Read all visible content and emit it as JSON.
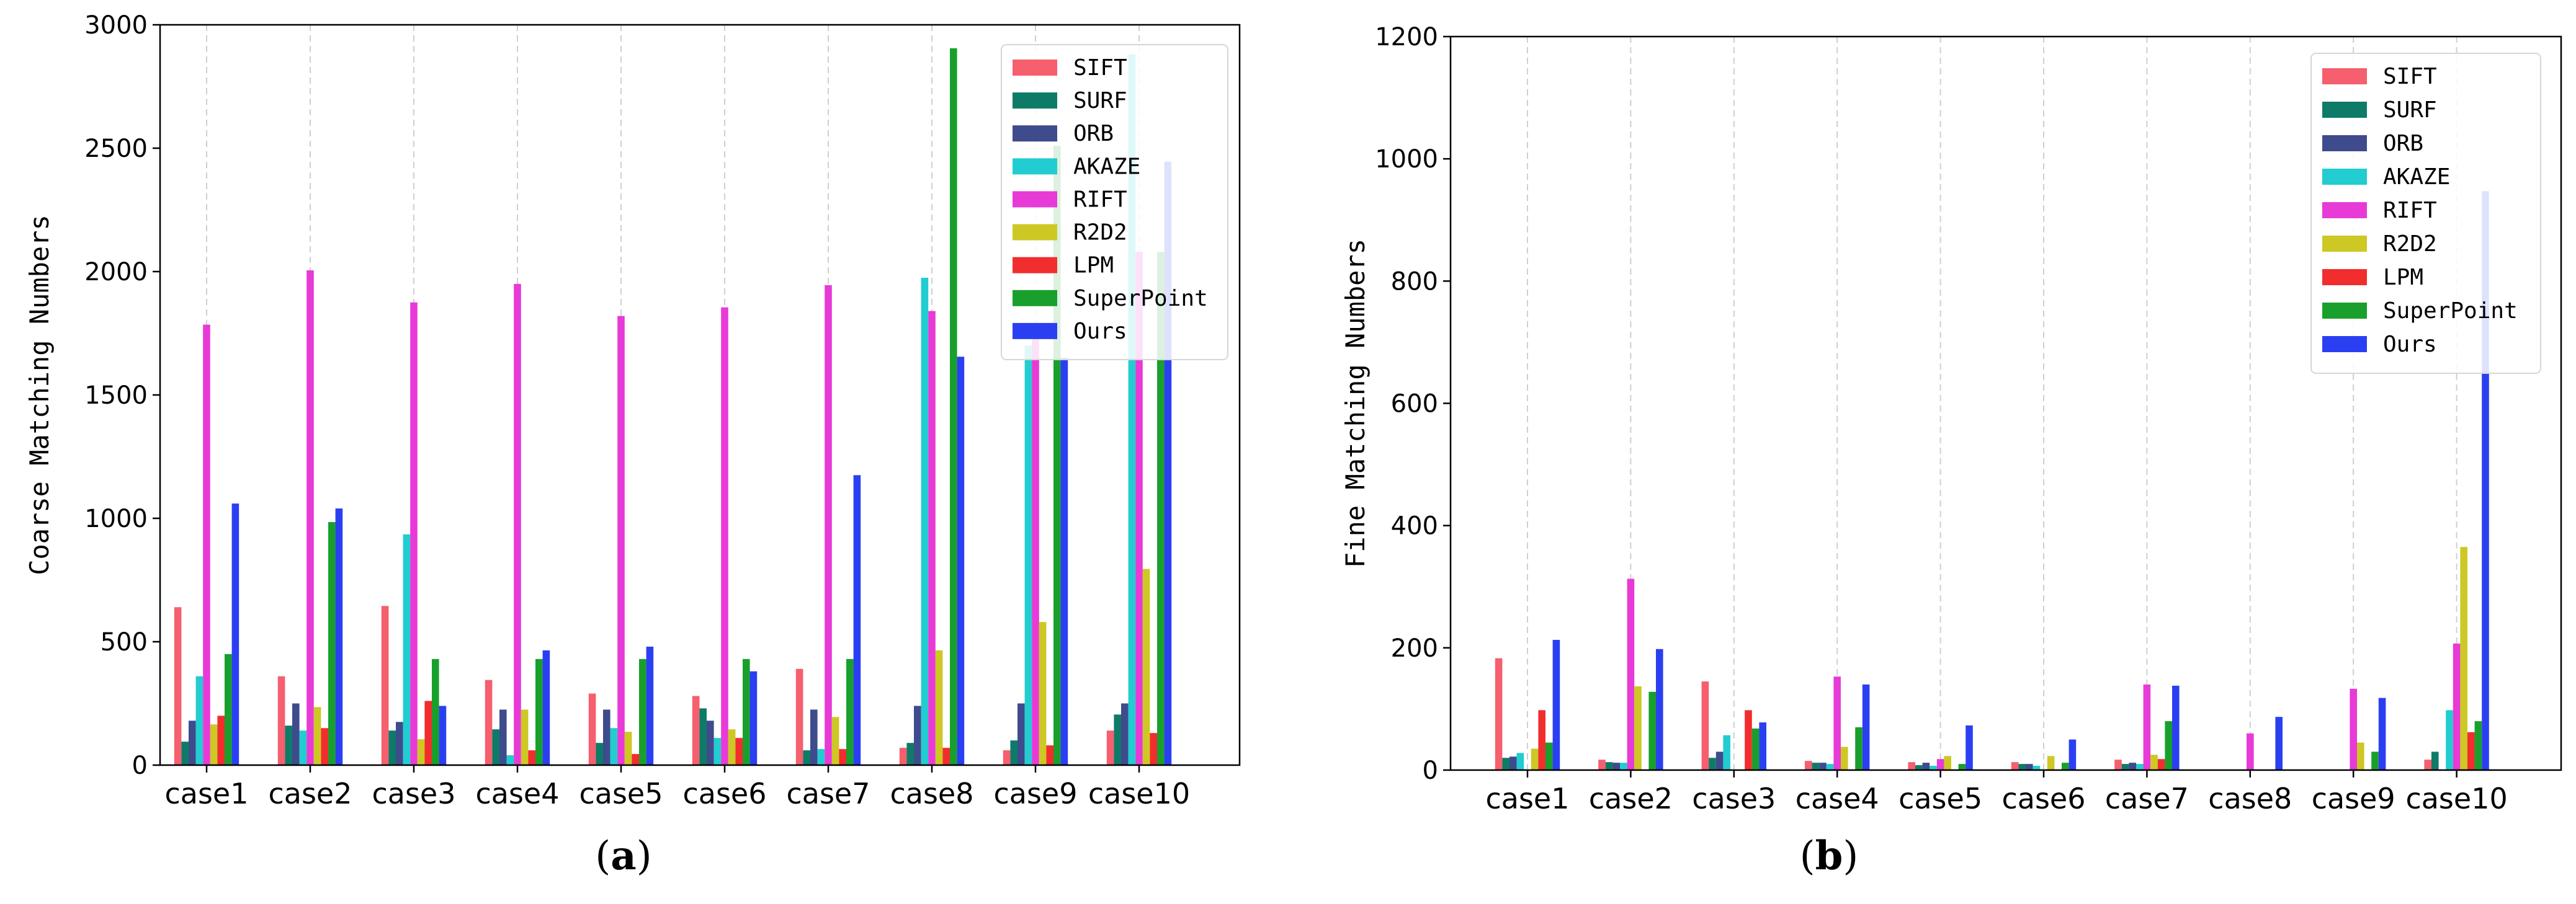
{
  "chart_data": [
    {
      "type": "bar",
      "panel_label": "a",
      "ylabel": "Coarse Matching Numbers",
      "ylim": [
        0,
        3000
      ],
      "yticks": [
        0,
        500,
        1000,
        1500,
        2000,
        2500,
        3000
      ],
      "grid_x": true,
      "legend_position": "top-right",
      "categories": [
        "case1",
        "case2",
        "case3",
        "case4",
        "case5",
        "case6",
        "case7",
        "case8",
        "case9",
        "case10"
      ],
      "series": [
        {
          "name": "SIFT",
          "color": "#f55f6e",
          "values": [
            640,
            360,
            645,
            345,
            290,
            280,
            390,
            70,
            60,
            140
          ]
        },
        {
          "name": "SURF",
          "color": "#0e7b68",
          "values": [
            95,
            160,
            140,
            145,
            90,
            230,
            60,
            90,
            100,
            205
          ]
        },
        {
          "name": "ORB",
          "color": "#3e4b8c",
          "values": [
            180,
            250,
            175,
            225,
            225,
            180,
            225,
            240,
            250,
            250
          ]
        },
        {
          "name": "AKAZE",
          "color": "#21cdd0",
          "values": [
            360,
            140,
            935,
            40,
            150,
            110,
            65,
            1975,
            1700,
            2880
          ]
        },
        {
          "name": "RIFT",
          "color": "#e83ad6",
          "values": [
            1785,
            2005,
            1875,
            1950,
            1820,
            1855,
            1945,
            1840,
            1750,
            2080
          ]
        },
        {
          "name": "R2D2",
          "color": "#cdc824",
          "values": [
            165,
            235,
            105,
            225,
            135,
            145,
            195,
            465,
            580,
            795
          ]
        },
        {
          "name": "LPM",
          "color": "#f22d2d",
          "values": [
            200,
            150,
            260,
            60,
            45,
            110,
            65,
            70,
            80,
            130
          ]
        },
        {
          "name": "SuperPoint",
          "color": "#19a02c",
          "values": [
            450,
            985,
            430,
            430,
            430,
            430,
            430,
            2905,
            2510,
            2080
          ]
        },
        {
          "name": "Ours",
          "color": "#2b3ff2",
          "values": [
            1060,
            1040,
            240,
            465,
            480,
            380,
            1175,
            1655,
            1650,
            2445
          ]
        }
      ]
    },
    {
      "type": "bar",
      "panel_label": "b",
      "ylabel": "Fine Matching Numbers",
      "ylim": [
        0,
        1200
      ],
      "yticks": [
        0,
        200,
        400,
        600,
        800,
        1000,
        1200
      ],
      "grid_x": true,
      "legend_position": "top-right",
      "categories": [
        "case1",
        "case2",
        "case3",
        "case4",
        "case5",
        "case6",
        "case7",
        "case8",
        "case9",
        "case10"
      ],
      "series": [
        {
          "name": "SIFT",
          "color": "#f55f6e",
          "values": [
            183,
            17,
            145,
            15,
            13,
            13,
            17,
            0,
            0,
            17
          ]
        },
        {
          "name": "SURF",
          "color": "#0e7b68",
          "values": [
            20,
            13,
            20,
            12,
            8,
            10,
            10,
            0,
            0,
            30
          ]
        },
        {
          "name": "ORB",
          "color": "#3e4b8c",
          "values": [
            22,
            12,
            30,
            12,
            12,
            10,
            12,
            0,
            0,
            0
          ]
        },
        {
          "name": "AKAZE",
          "color": "#21cdd0",
          "values": [
            28,
            12,
            57,
            10,
            7,
            7,
            10,
            0,
            0,
            98
          ]
        },
        {
          "name": "RIFT",
          "color": "#e83ad6",
          "values": [
            0,
            313,
            0,
            153,
            18,
            0,
            140,
            60,
            133,
            207
          ]
        },
        {
          "name": "R2D2",
          "color": "#cdc824",
          "values": [
            35,
            137,
            0,
            38,
            23,
            23,
            25,
            0,
            45,
            365
          ]
        },
        {
          "name": "LPM",
          "color": "#f22d2d",
          "values": [
            98,
            0,
            98,
            0,
            0,
            0,
            18,
            0,
            0,
            62
          ]
        },
        {
          "name": "SuperPoint",
          "color": "#19a02c",
          "values": [
            45,
            128,
            68,
            70,
            10,
            12,
            80,
            0,
            30,
            80
          ]
        },
        {
          "name": "Ours",
          "color": "#2b3ff2",
          "values": [
            213,
            198,
            78,
            140,
            73,
            50,
            138,
            87,
            118,
            947
          ]
        }
      ]
    }
  ]
}
